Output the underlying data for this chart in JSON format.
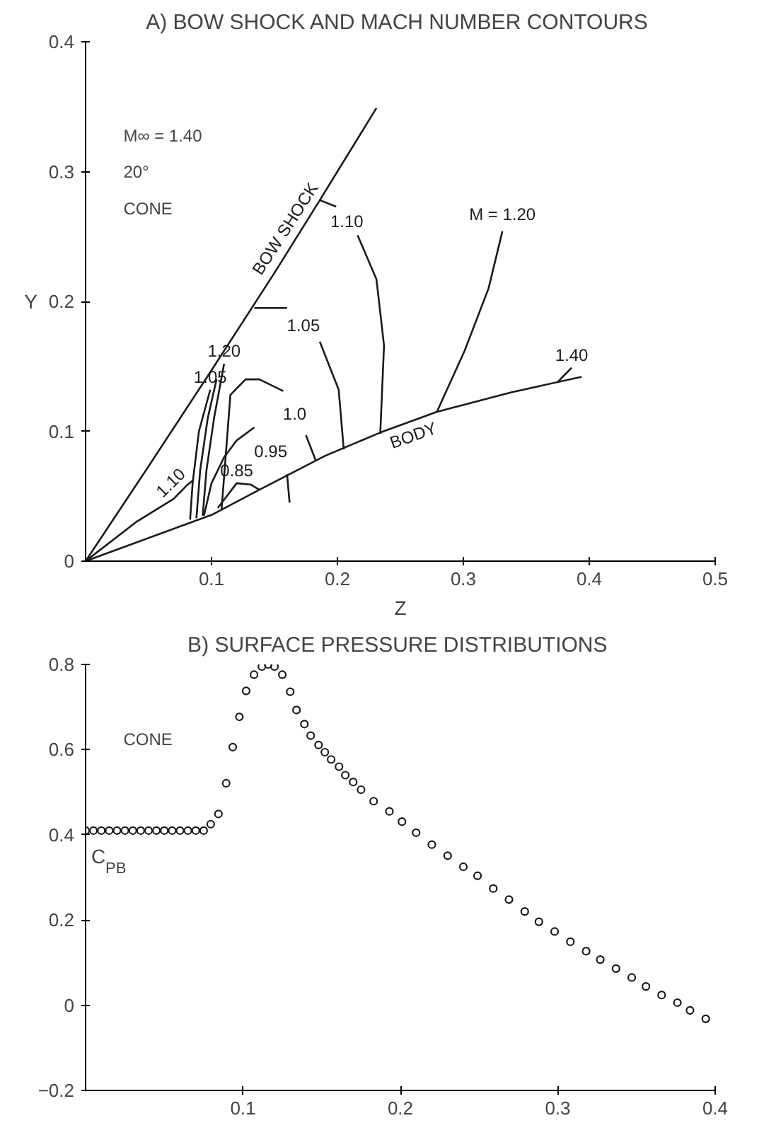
{
  "chart_data": [
    {
      "type": "line",
      "title": "A)  BOW SHOCK AND MACH NUMBER CONTOURS",
      "xlabel": "Z",
      "ylabel": "Y",
      "xlim": [
        0,
        0.5
      ],
      "ylim": [
        0,
        0.4
      ],
      "xticks": [
        0.1,
        0.2,
        0.3,
        0.4,
        0.5
      ],
      "yticks": [
        0,
        0.1,
        0.2,
        0.3,
        0.4
      ],
      "grid": false,
      "line_style": "solid",
      "series": [
        {
          "name": "BOW SHOCK",
          "color": "#1a1a1a",
          "x": [
            0,
            0.05,
            0.1,
            0.15,
            0.186,
            0.231
          ],
          "values": [
            0,
            0.073,
            0.147,
            0.222,
            0.278,
            0.349
          ]
        },
        {
          "name": "BODY",
          "color": "#1a1a1a",
          "x": [
            0,
            0.101,
            0.138,
            0.19,
            0.234,
            0.279,
            0.338,
            0.394
          ],
          "values": [
            0,
            0.036,
            0.055,
            0.081,
            0.099,
            0.115,
            0.13,
            0.142
          ]
        },
        {
          "name": "1.10",
          "color": "#1a1a1a",
          "x": [
            0,
            0.04,
            0.07,
            0.08,
            0.085
          ],
          "values": [
            0,
            0.03,
            0.048,
            0.058,
            0.062
          ]
        },
        {
          "name": "1.05",
          "color": "#1a1a1a",
          "x": [
            0.083,
            0.085,
            0.09,
            0.099
          ],
          "values": [
            0.032,
            0.06,
            0.1,
            0.132
          ]
        },
        {
          "color": "#1a1a1a",
          "x": [
            0.088,
            0.091,
            0.097,
            0.104
          ],
          "values": [
            0.033,
            0.07,
            0.11,
            0.14
          ]
        },
        {
          "name": "1.20",
          "color": "#1a1a1a",
          "x": [
            0.093,
            0.096,
            0.102,
            0.11
          ],
          "values": [
            0.035,
            0.07,
            0.11,
            0.152
          ]
        },
        {
          "name": "0.85",
          "color": "#1a1a1a",
          "x": [
            0.105,
            0.12,
            0.131,
            0.138
          ],
          "values": [
            0.041,
            0.06,
            0.059,
            0.055
          ]
        },
        {
          "name": "0.95",
          "color": "#1a1a1a",
          "x": [
            0.094,
            0.1,
            0.11,
            0.12,
            0.134,
            0.147,
            0.16,
            0.162
          ],
          "values": [
            0.035,
            0.06,
            0.08,
            0.093,
            0.103,
            null,
            0.067,
            0.045
          ]
        },
        {
          "name": "1.0",
          "color": "#1a1a1a",
          "x": [
            0.108,
            0.115,
            0.127,
            0.138,
            0.157,
            0.166,
            0.175,
            0.183
          ],
          "values": [
            0.04,
            0.128,
            0.14,
            0.14,
            0.131,
            null,
            0.097,
            0.077
          ]
        },
        {
          "name": "1.05",
          "color": "#1a1a1a",
          "x": [
            0.134,
            0.16,
            0.173,
            0.186,
            0.201,
            0.205
          ],
          "values": [
            0.195,
            0.195,
            null,
            0.169,
            0.132,
            0.086
          ]
        },
        {
          "name": "1.10",
          "color": "#1a1a1a",
          "x": [
            0.186,
            0.199,
            0.208,
            0.216,
            0.231,
            0.237,
            0.234
          ],
          "values": [
            0.278,
            0.273,
            null,
            0.251,
            0.217,
            0.166,
            0.098
          ]
        },
        {
          "name": "M = 1.20",
          "color": "#1a1a1a",
          "x": [
            0.331,
            0.32,
            0.301,
            0.279
          ],
          "values": [
            0.254,
            0.21,
            0.162,
            0.115
          ]
        },
        {
          "name": "1.40",
          "color": "#1a1a1a",
          "x": [
            0.375,
            0.386
          ],
          "values": [
            0.138,
            0.149
          ]
        }
      ],
      "annotations": [
        "M∞ = 1.40",
        "20°",
        "CONE"
      ]
    },
    {
      "type": "scatter",
      "title": "B)  SURFACE PRESSURE DISTRIBUTIONS",
      "ylabel": "C$_{PB}$",
      "xlim": [
        0,
        0.4
      ],
      "ylim": [
        -0.2,
        0.8
      ],
      "xticks": [
        0.1,
        0.2,
        0.3,
        0.4
      ],
      "yticks": [
        {
          "value": -0.2,
          "label": "−0.2"
        },
        0,
        0.2,
        0.4,
        0.6,
        0.8
      ],
      "grid": false,
      "marker": "circle",
      "color": "#1a1a1a",
      "x": [
        0,
        0.005,
        0.01,
        0.015,
        0.02,
        0.025,
        0.03,
        0.035,
        0.04,
        0.045,
        0.05,
        0.055,
        0.06,
        0.065,
        0.07,
        0.075,
        0.0795,
        0.0844,
        0.0893,
        0.0935,
        0.0977,
        0.102,
        0.107,
        0.112,
        0.116,
        0.12,
        0.125,
        0.13,
        0.134,
        0.139,
        0.143,
        0.148,
        0.152,
        0.156,
        0.161,
        0.165,
        0.17,
        0.175,
        0.183,
        0.193,
        0.201,
        0.21,
        0.22,
        0.23,
        0.24,
        0.249,
        0.259,
        0.269,
        0.279,
        0.288,
        0.298,
        0.308,
        0.318,
        0.327,
        0.337,
        0.347,
        0.356,
        0.366,
        0.376,
        0.384,
        0.394
      ],
      "values": [
        0.41,
        0.41,
        0.41,
        0.41,
        0.41,
        0.41,
        0.41,
        0.41,
        0.41,
        0.41,
        0.41,
        0.41,
        0.41,
        0.41,
        0.41,
        0.41,
        0.425,
        0.449,
        0.521,
        0.606,
        0.677,
        0.738,
        0.776,
        0.795,
        0.8,
        0.795,
        0.776,
        0.736,
        0.693,
        0.66,
        0.633,
        0.611,
        0.594,
        0.577,
        0.56,
        0.54,
        0.524,
        0.506,
        0.479,
        0.455,
        0.431,
        0.405,
        0.377,
        0.351,
        0.325,
        0.304,
        0.274,
        0.248,
        0.22,
        0.196,
        0.173,
        0.149,
        0.127,
        0.107,
        0.086,
        0.065,
        0.044,
        0.024,
        0.006,
        -0.012,
        -0.032
      ],
      "annotations": [
        "CONE"
      ]
    }
  ]
}
